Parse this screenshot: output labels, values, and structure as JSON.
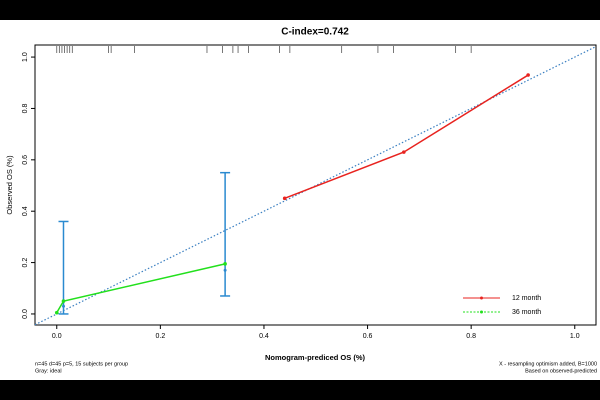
{
  "chart_data": {
    "type": "line",
    "title": "C-index=0.742",
    "x_label": "Nomogram-prediced OS (%)",
    "y_label": "Observed OS (%)",
    "xlim": [
      -0.042,
      1.041
    ],
    "ylim": [
      -0.043,
      1.047
    ],
    "xticks": [
      {
        "value": 0,
        "label": "0.0"
      },
      0.2,
      0.4,
      0.6,
      0.8,
      {
        "value": 1,
        "label": "1.0"
      }
    ],
    "yticks": [
      {
        "value": 0,
        "label": "0.0"
      },
      0.2,
      0.4,
      0.6,
      0.8,
      {
        "value": 1,
        "label": "1.0"
      }
    ],
    "ideal_color": "#3a7fc1",
    "series": [
      {
        "name": "12 month",
        "color": "#e8231f",
        "x": [
          0.44,
          0.67,
          0.91
        ],
        "values": [
          0.45,
          0.63,
          0.93
        ]
      },
      {
        "name": "36 month",
        "color": "#22e01c",
        "x": [
          0.0,
          0.013,
          0.325
        ],
        "values": [
          0.005,
          0.05,
          0.195
        ]
      }
    ],
    "error_bars": {
      "color": "#2a8ad0",
      "x": [
        0.013,
        0.325
      ],
      "values": [
        0.03,
        0.17
      ],
      "lower": [
        0.0,
        0.07
      ],
      "upper": [
        0.36,
        0.55
      ]
    },
    "rug": [
      0.0,
      0.005,
      0.01,
      0.015,
      0.02,
      0.025,
      0.03,
      0.1,
      0.105,
      0.15,
      0.29,
      0.32,
      0.34,
      0.35,
      0.37,
      0.43,
      0.45,
      0.55,
      0.62,
      0.65,
      0.77,
      0.8
    ],
    "legend": "bottom-right",
    "notes_left": [
      "n=45 d=45 p=5, 15 subjects per group",
      "Gray: ideal"
    ],
    "notes_right": [
      "X - resampling optimism added, B=1000",
      "Based on observed-predicted"
    ]
  }
}
